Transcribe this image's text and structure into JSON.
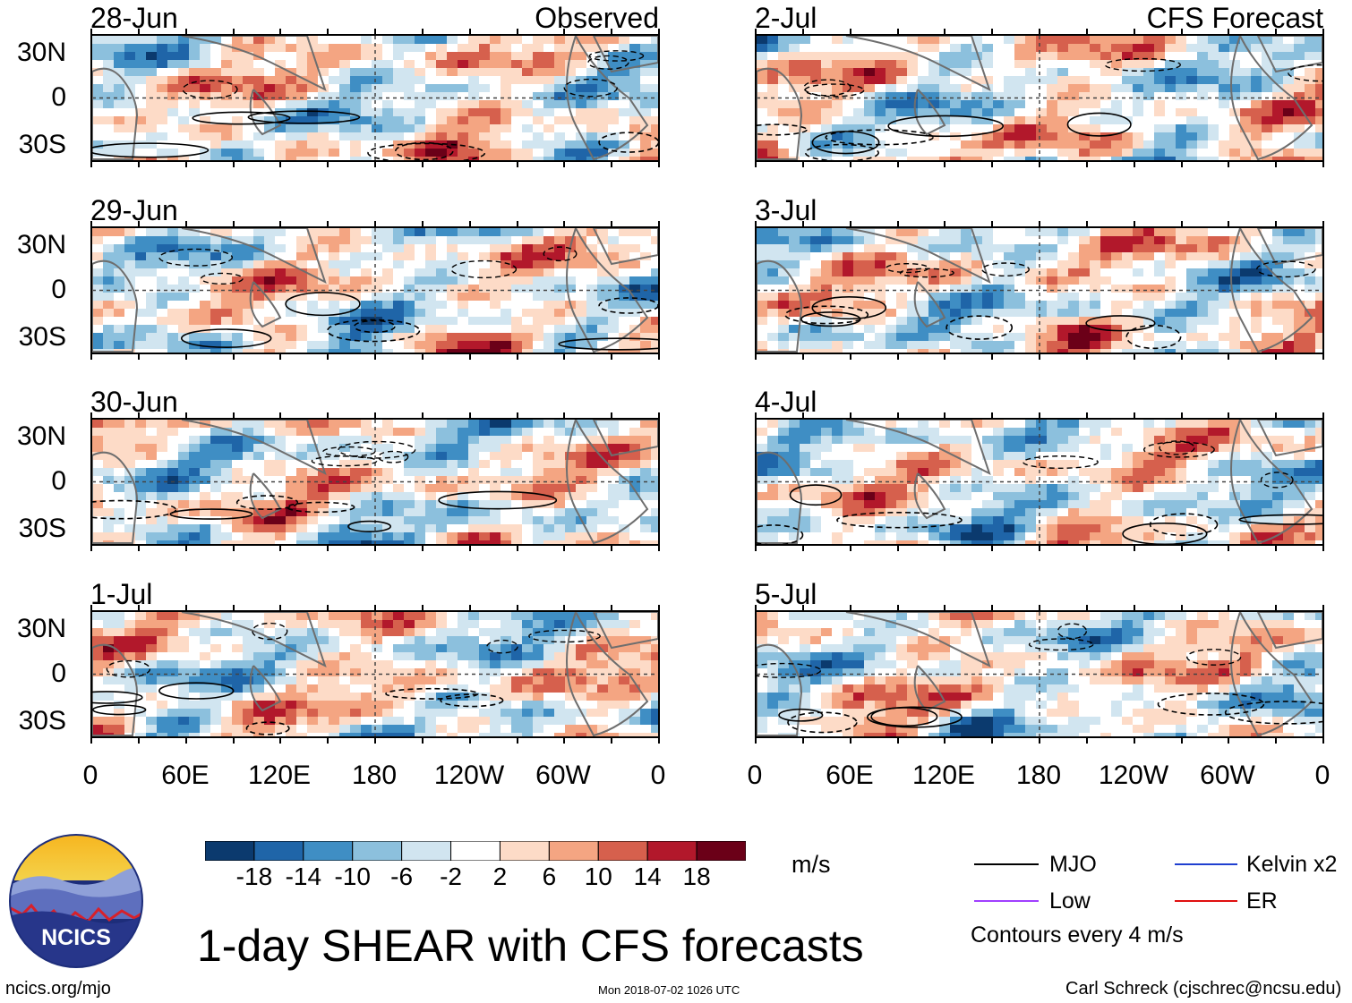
{
  "chart_data": {
    "type": "heatmap",
    "title": "1-day SHEAR with CFS forecasts",
    "variable": "SHEAR",
    "units": "m/s",
    "observed_label": "Observed",
    "forecast_label": "CFS Forecast",
    "observed_panels": [
      "28-Jun",
      "29-Jun",
      "30-Jun",
      "1-Jul"
    ],
    "forecast_panels": [
      "2-Jul",
      "3-Jul",
      "4-Jul",
      "5-Jul"
    ],
    "lat_ticks": [
      "30N",
      "0",
      "30S"
    ],
    "lat_range": [
      -40,
      40
    ],
    "lon_ticks": [
      "0",
      "60E",
      "120E",
      "180",
      "120W",
      "60W",
      "0"
    ],
    "lon_range": [
      0,
      360
    ],
    "colorbar": {
      "levels": [
        "-18",
        "-14",
        "-10",
        "-6",
        "-2",
        "2",
        "6",
        "10",
        "14",
        "18"
      ],
      "colors": [
        "#0b3a6e",
        "#1f65a8",
        "#3f8ec4",
        "#8cc0dd",
        "#d1e5f0",
        "#ffffff",
        "#fddbc7",
        "#f4a582",
        "#d6604d",
        "#b2182b",
        "#6b0018"
      ]
    },
    "legend": [
      {
        "name": "MJO",
        "color": "#000000"
      },
      {
        "name": "Kelvin x2",
        "color": "#1f3fd0"
      },
      {
        "name": "Low",
        "color": "#a040ff"
      },
      {
        "name": "ER",
        "color": "#e01010"
      }
    ],
    "contour_note": "Contours every 4 m/s"
  },
  "footer": {
    "logo_text": "NCICS",
    "site": "ncics.org/mjo",
    "timestamp": "Mon 2018-07-02 1026 UTC",
    "author": "Carl Schreck (cjschrec@ncsu.edu)"
  }
}
